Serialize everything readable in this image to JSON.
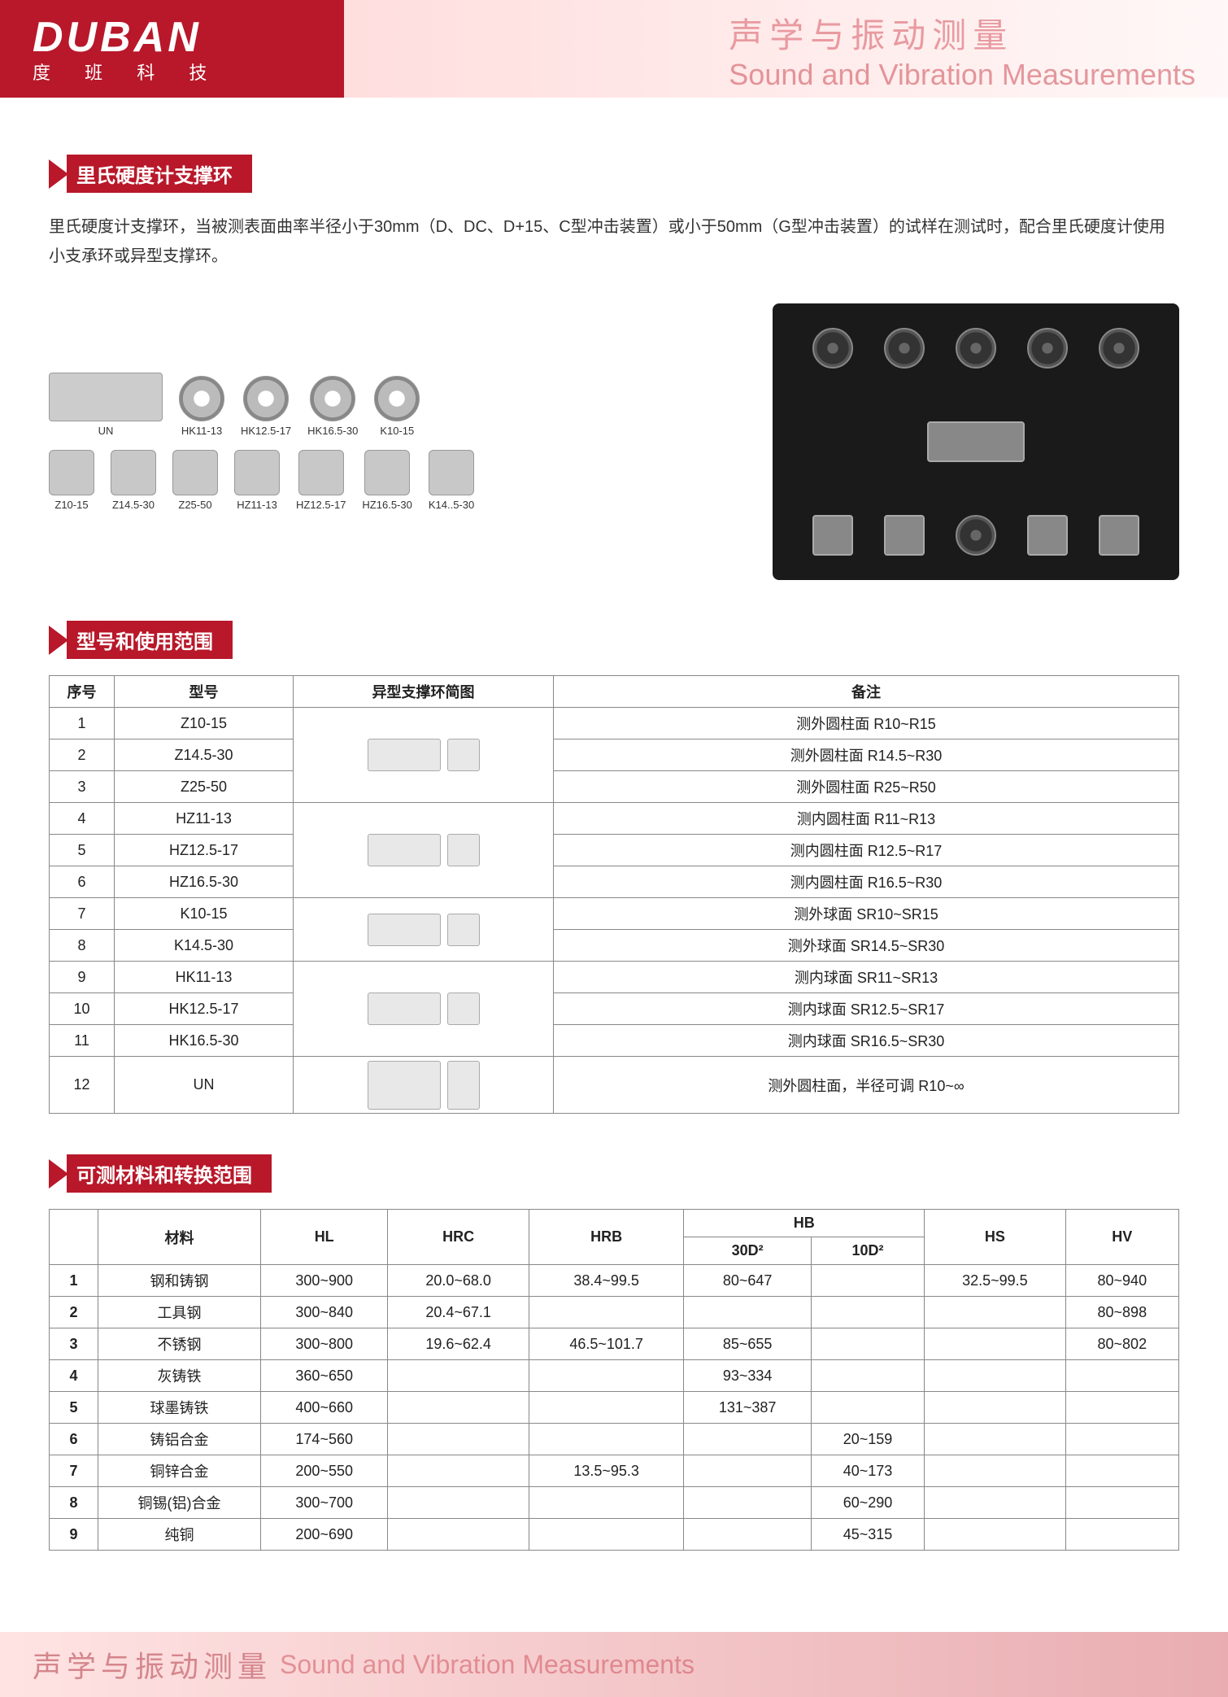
{
  "brand": {
    "name": "DUBAN",
    "sub": "度 班 科 技"
  },
  "header": {
    "cn": "声学与振动测量",
    "en": "Sound and Vibration Measurements"
  },
  "section1": {
    "title": "里氏硬度计支撑环"
  },
  "description": "里氏硬度计支撑环，当被测表面曲率半径小于30mm（D、DC、D+15、C型冲击装置）或小于50mm（G型冲击装置）的试样在测试时，配合里氏硬度计使用小支承环或异型支撑环。",
  "parts_row1": [
    "UN",
    "HK11-13",
    "HK12.5-17",
    "HK16.5-30",
    "K10-15"
  ],
  "parts_row2": [
    "Z10-15",
    "Z14.5-30",
    "Z25-50",
    "HZ11-13",
    "HZ12.5-17",
    "HZ16.5-30",
    "K14..5-30"
  ],
  "section2": {
    "title": "型号和使用范围"
  },
  "table1": {
    "headers": [
      "序号",
      "型号",
      "异型支撑环简图",
      "备注"
    ],
    "rows": [
      {
        "n": "1",
        "model": "Z10-15",
        "note": "测外圆柱面 R10~R15",
        "group": "a",
        "first": true,
        "span": 3
      },
      {
        "n": "2",
        "model": "Z14.5-30",
        "note": "测外圆柱面 R14.5~R30",
        "group": "a"
      },
      {
        "n": "3",
        "model": "Z25-50",
        "note": "测外圆柱面 R25~R50",
        "group": "a"
      },
      {
        "n": "4",
        "model": "HZ11-13",
        "note": "测内圆柱面 R11~R13",
        "group": "b",
        "first": true,
        "span": 3
      },
      {
        "n": "5",
        "model": "HZ12.5-17",
        "note": "测内圆柱面 R12.5~R17",
        "group": "b"
      },
      {
        "n": "6",
        "model": "HZ16.5-30",
        "note": "测内圆柱面 R16.5~R30",
        "group": "b"
      },
      {
        "n": "7",
        "model": "K10-15",
        "note": "测外球面 SR10~SR15",
        "group": "c",
        "first": true,
        "span": 2
      },
      {
        "n": "8",
        "model": "K14.5-30",
        "note": "测外球面 SR14.5~SR30",
        "group": "c"
      },
      {
        "n": "9",
        "model": "HK11-13",
        "note": "测内球面 SR11~SR13",
        "group": "d",
        "first": true,
        "span": 3
      },
      {
        "n": "10",
        "model": "HK12.5-17",
        "note": "测内球面 SR12.5~SR17",
        "group": "d"
      },
      {
        "n": "11",
        "model": "HK16.5-30",
        "note": "测内球面 SR16.5~SR30",
        "group": "d"
      },
      {
        "n": "12",
        "model": "UN",
        "note": "测外圆柱面，半径可调 R10~∞",
        "group": "e",
        "first": true,
        "span": 1,
        "tall": true
      }
    ]
  },
  "section3": {
    "title": "可测材料和转换范围"
  },
  "table2": {
    "head1": [
      "",
      "材料",
      "HL",
      "HRC",
      "HRB",
      "HB",
      "",
      "HS",
      "HV"
    ],
    "head2_hb": [
      "30D²",
      "10D²"
    ],
    "rows": [
      [
        "1",
        "钢和铸钢",
        "300~900",
        "20.0~68.0",
        "38.4~99.5",
        "80~647",
        "",
        "32.5~99.5",
        "80~940"
      ],
      [
        "2",
        "工具钢",
        "300~840",
        "20.4~67.1",
        "",
        "",
        "",
        "",
        "80~898"
      ],
      [
        "3",
        "不锈钢",
        "300~800",
        "19.6~62.4",
        "46.5~101.7",
        "85~655",
        "",
        "",
        "80~802"
      ],
      [
        "4",
        "灰铸铁",
        "360~650",
        "",
        "",
        "93~334",
        "",
        "",
        ""
      ],
      [
        "5",
        "球墨铸铁",
        "400~660",
        "",
        "",
        "131~387",
        "",
        "",
        ""
      ],
      [
        "6",
        "铸铝合金",
        "174~560",
        "",
        "",
        "",
        "20~159",
        "",
        ""
      ],
      [
        "7",
        "铜锌合金",
        "200~550",
        "",
        "13.5~95.3",
        "",
        "40~173",
        "",
        ""
      ],
      [
        "8",
        "铜锡(铝)合金",
        "300~700",
        "",
        "",
        "",
        "60~290",
        "",
        ""
      ],
      [
        "9",
        "纯铜",
        "200~690",
        "",
        "",
        "",
        "45~315",
        "",
        ""
      ]
    ]
  },
  "footer": {
    "cn": "声学与振动测量",
    "en": "Sound and Vibration Measurements"
  },
  "colors": {
    "brand": "#b8182a",
    "text": "#333",
    "border": "#888"
  }
}
